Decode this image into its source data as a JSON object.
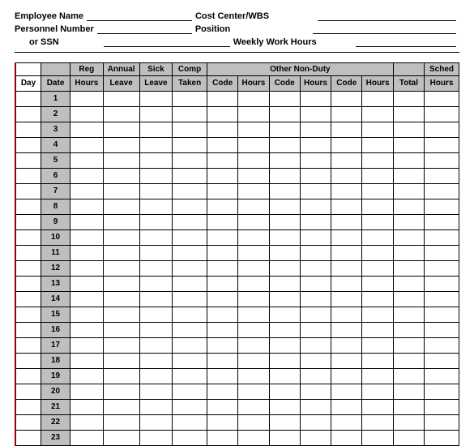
{
  "form": {
    "employee_name_label": "Employee Name",
    "cost_center_label": "Cost Center/WBS",
    "personnel_number_label": "Personnel Number",
    "or_ssn_label": "or SSN",
    "position_label": "Position",
    "weekly_hours_label": "Weekly Work Hours"
  },
  "table": {
    "header_top": {
      "reg": "Reg",
      "annual": "Annual",
      "sick": "Sick",
      "comp": "Comp",
      "other_nonduty": "Other Non-Duty",
      "sched": "Sched"
    },
    "header_bottom": {
      "day": "Day",
      "date": "Date",
      "hours": "Hours",
      "leave": "Leave",
      "taken": "Taken",
      "code": "Code",
      "total": "Total"
    },
    "days": [
      1,
      2,
      3,
      4,
      5,
      6,
      7,
      8,
      9,
      10,
      11,
      12,
      13,
      14,
      15,
      16,
      17,
      18,
      19,
      20,
      21,
      22,
      23
    ],
    "columns_per_row": 14,
    "colors": {
      "header_bg": "#bfbfbf",
      "day_col_bg": "#bfbfbf",
      "border": "#000000",
      "left_border": "#a00000",
      "background": "#ffffff"
    }
  }
}
